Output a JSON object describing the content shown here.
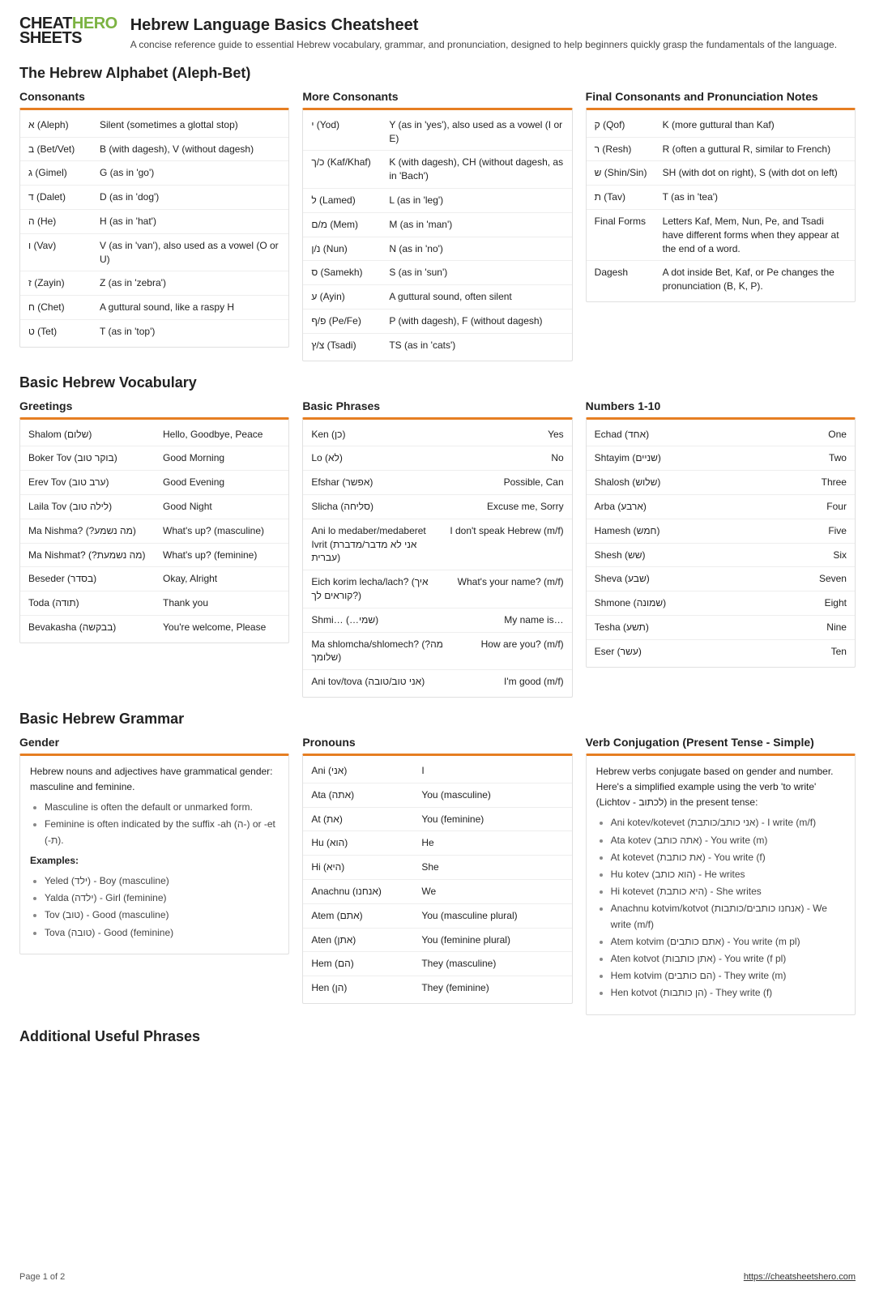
{
  "logo": {
    "line1a": "CHEAT",
    "line1b": "HERO",
    "line2": "SHEETS"
  },
  "title": "Hebrew Language Basics Cheatsheet",
  "subtitle": "A concise reference guide to essential Hebrew vocabulary, grammar, and pronunciation, designed to help beginners quickly grasp the fundamentals of the language.",
  "sec1": {
    "heading": "The Hebrew Alphabet (Aleph-Bet)",
    "col1": {
      "title": "Consonants",
      "rows": [
        [
          "א (Aleph)",
          "Silent (sometimes a glottal stop)"
        ],
        [
          "ב (Bet/Vet)",
          "B (with dagesh), V (without dagesh)"
        ],
        [
          "ג (Gimel)",
          "G (as in 'go')"
        ],
        [
          "ד (Dalet)",
          "D (as in 'dog')"
        ],
        [
          "ה (He)",
          "H (as in 'hat')"
        ],
        [
          "ו (Vav)",
          "V (as in 'van'), also used as a vowel (O or U)"
        ],
        [
          "ז (Zayin)",
          "Z (as in 'zebra')"
        ],
        [
          "ח (Chet)",
          "A guttural sound, like a raspy H"
        ],
        [
          "ט (Tet)",
          "T (as in 'top')"
        ]
      ]
    },
    "col2": {
      "title": "More Consonants",
      "rows": [
        [
          "י (Yod)",
          "Y (as in 'yes'), also used as a vowel (I or E)"
        ],
        [
          "כ/ך (Kaf/Khaf)",
          "K (with dagesh), CH (without dagesh, as in 'Bach')"
        ],
        [
          "ל (Lamed)",
          "L (as in 'leg')"
        ],
        [
          "מ/ם (Mem)",
          "M (as in 'man')"
        ],
        [
          "נ/ן (Nun)",
          "N (as in 'no')"
        ],
        [
          "ס (Samekh)",
          "S (as in 'sun')"
        ],
        [
          "ע (Ayin)",
          "A guttural sound, often silent"
        ],
        [
          "פ/ף (Pe/Fe)",
          "P (with dagesh), F (without dagesh)"
        ],
        [
          "צ/ץ (Tsadi)",
          "TS (as in 'cats')"
        ]
      ]
    },
    "col3": {
      "title": "Final Consonants and Pronunciation Notes",
      "rows": [
        [
          "ק (Qof)",
          "K (more guttural than Kaf)"
        ],
        [
          "ר (Resh)",
          "R (often a guttural R, similar to French)"
        ],
        [
          "ש (Shin/Sin)",
          "SH (with dot on right), S (with dot on left)"
        ],
        [
          "ת (Tav)",
          "T (as in 'tea')"
        ],
        [
          "Final Forms",
          "Letters Kaf, Mem, Nun, Pe, and Tsadi have different forms when they appear at the end of a word."
        ],
        [
          "Dagesh",
          "A dot inside Bet, Kaf, or Pe changes the pronunciation (B, K, P)."
        ]
      ]
    }
  },
  "sec2": {
    "heading": "Basic Hebrew Vocabulary",
    "col1": {
      "title": "Greetings",
      "rows": [
        [
          "Shalom (שלום)",
          "Hello, Goodbye, Peace"
        ],
        [
          "Boker Tov (בוקר טוב)",
          "Good Morning"
        ],
        [
          "Erev Tov (ערב טוב)",
          "Good Evening"
        ],
        [
          "Laila Tov (לילה טוב)",
          "Good Night"
        ],
        [
          "Ma Nishma? (?מה נשמע)",
          "What's up? (masculine)"
        ],
        [
          "Ma Nishmat? (?מה נשמעת)",
          "What's up? (feminine)"
        ],
        [
          "Beseder (בסדר)",
          "Okay, Alright"
        ],
        [
          "Toda (תודה)",
          "Thank you"
        ],
        [
          "Bevakasha (בבקשה)",
          "You're welcome, Please"
        ]
      ]
    },
    "col2": {
      "title": "Basic Phrases",
      "rows": [
        [
          "Ken (כן)",
          "Yes"
        ],
        [
          "Lo (לא)",
          "No"
        ],
        [
          "Efshar (אפשר)",
          "Possible, Can"
        ],
        [
          "Slicha (סליחה)",
          "Excuse me, Sorry"
        ],
        [
          "Ani lo medaber/medaberet Ivrit (אני לא מדבר/מדברת עברית)",
          "I don't speak Hebrew (m/f)"
        ],
        [
          "Eich korim lecha/lach? (איך קוראים לך?)",
          "What's your name? (m/f)"
        ],
        [
          "Shmi… (…שמי)",
          "My name is…"
        ],
        [
          "Ma shlomcha/shlomech? (?מה שלומך)",
          "How are you? (m/f)"
        ],
        [
          "Ani tov/tova (אני טוב/טובה)",
          "I'm good (m/f)"
        ]
      ]
    },
    "col3": {
      "title": "Numbers 1-10",
      "rows": [
        [
          "Echad (אחד)",
          "One"
        ],
        [
          "Shtayim (שניים)",
          "Two"
        ],
        [
          "Shalosh (שלוש)",
          "Three"
        ],
        [
          "Arba (ארבע)",
          "Four"
        ],
        [
          "Hamesh (חמש)",
          "Five"
        ],
        [
          "Shesh (שש)",
          "Six"
        ],
        [
          "Sheva (שבע)",
          "Seven"
        ],
        [
          "Shmone (שמונה)",
          "Eight"
        ],
        [
          "Tesha (תשע)",
          "Nine"
        ],
        [
          "Eser (עשר)",
          "Ten"
        ]
      ]
    }
  },
  "sec3": {
    "heading": "Basic Hebrew Grammar",
    "col1": {
      "title": "Gender",
      "intro": "Hebrew nouns and adjectives have grammatical gender: masculine and feminine.",
      "bullets1": [
        "Masculine is often the default or unmarked form.",
        "Feminine is often indicated by the suffix -ah (ה-) or -et (-ת)."
      ],
      "examplesLabel": "Examples:",
      "bullets2": [
        "Yeled (ילד) - Boy (masculine)",
        "Yalda (ילדה) - Girl (feminine)",
        "Tov (טוב) - Good (masculine)",
        "Tova (טובה) - Good (feminine)"
      ]
    },
    "col2": {
      "title": "Pronouns",
      "rows": [
        [
          "Ani (אני)",
          "I"
        ],
        [
          "Ata (אתה)",
          "You (masculine)"
        ],
        [
          "At (את)",
          "You (feminine)"
        ],
        [
          "Hu (הוא)",
          "He"
        ],
        [
          "Hi (היא)",
          "She"
        ],
        [
          "Anachnu (אנחנו)",
          "We"
        ],
        [
          "Atem (אתם)",
          "You (masculine plural)"
        ],
        [
          "Aten (אתן)",
          "You (feminine plural)"
        ],
        [
          "Hem (הם)",
          "They (masculine)"
        ],
        [
          "Hen (הן)",
          "They (feminine)"
        ]
      ]
    },
    "col3": {
      "title": "Verb Conjugation (Present Tense - Simple)",
      "intro": "Hebrew verbs conjugate based on gender and number. Here's a simplified example using the verb 'to write' (Lichtov - לכתוב) in the present tense:",
      "bullets": [
        "Ani kotev/kotevet (אני כותב/כותבת) - I write (m/f)",
        "Ata kotev (אתה כותב) - You write (m)",
        "At kotevet (את כותבת) - You write (f)",
        "Hu kotev (הוא כותב) - He writes",
        "Hi kotevet (היא כותבת) - She writes",
        "Anachnu kotvim/kotvot (אנחנו כותבים/כותבות) - We write (m/f)",
        "Atem kotvim (אתם כותבים) - You write (m pl)",
        "Aten kotvot (אתן כותבות) - You write (f pl)",
        "Hem kotvim (הם כותבים) - They write (m)",
        "Hen kotvot (הן כותבות) - They write (f)"
      ]
    }
  },
  "sec4": {
    "heading": "Additional Useful Phrases"
  },
  "footer": {
    "page": "Page 1 of 2",
    "url": "https://cheatsheetshero.com"
  }
}
